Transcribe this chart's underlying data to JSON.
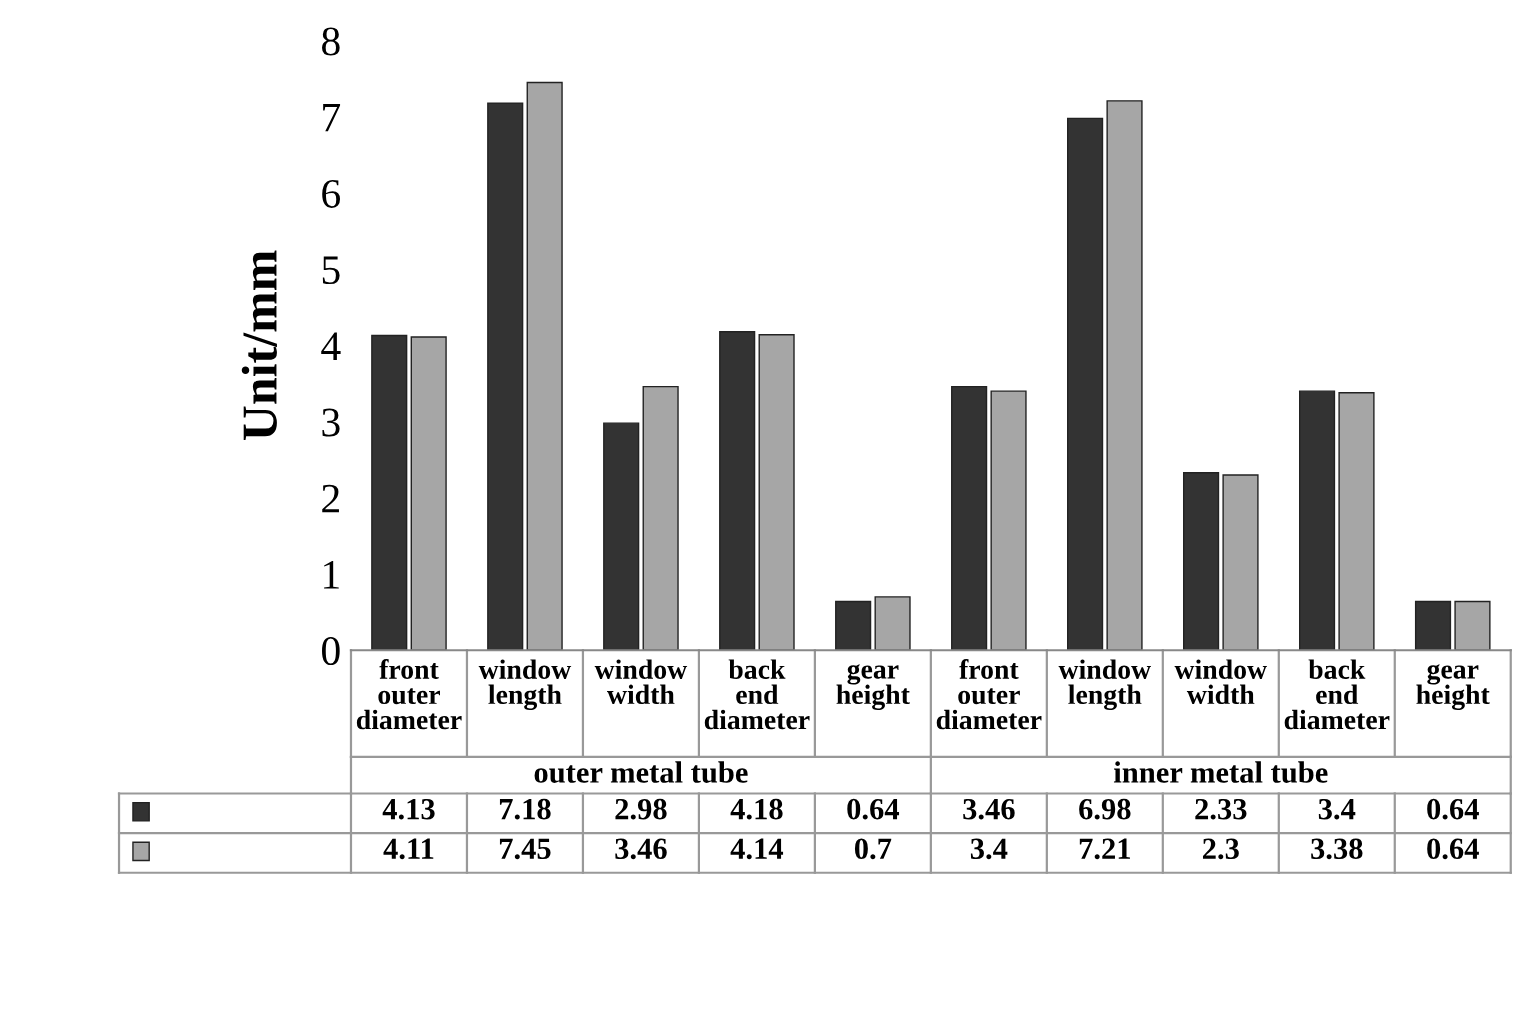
{
  "chart_data": {
    "type": "bar",
    "ylabel": "Unit/mm",
    "categories": [
      "front outer diameter",
      "window length",
      "window width",
      "back end diameter",
      "gear height",
      "front outer diameter",
      "window length",
      "window width",
      "back end diameter",
      "gear height"
    ],
    "series": [
      {
        "color": "#333333",
        "values": [
          4.13,
          7.18,
          2.98,
          4.18,
          0.64,
          3.46,
          6.98,
          2.33,
          3.4,
          0.64
        ]
      },
      {
        "color": "#a6a6a6",
        "values": [
          4.11,
          7.45,
          3.46,
          4.14,
          0.7,
          3.4,
          7.21,
          2.3,
          3.38,
          0.64
        ]
      }
    ],
    "annotations": [
      "outer metal tube",
      "inner metal tube"
    ],
    "ylim": [
      0,
      8
    ],
    "yticks": [
      0,
      1,
      2,
      3,
      4,
      5,
      6,
      7,
      8
    ],
    "grid": false,
    "legend": false,
    "data_labels": true
  }
}
